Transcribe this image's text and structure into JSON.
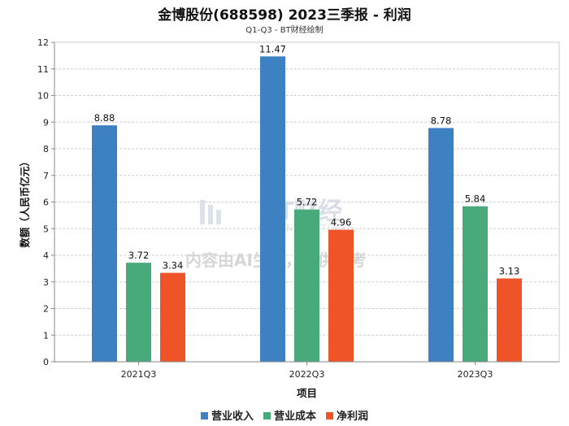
{
  "title": "金博股份(688598) 2023三季报 - 利润",
  "subtitle": "Q1-Q3 - BT财经绘制",
  "watermark": {
    "brand": "BT财经",
    "brand_en": "BUSINESS TIMES",
    "ai_notice": "内容由AI生成，仅供参考"
  },
  "chart_data": {
    "type": "bar",
    "categories": [
      "2021Q3",
      "2022Q3",
      "2023Q3"
    ],
    "series": [
      {
        "name": "营业收入",
        "color": "#3d81c3",
        "values": [
          8.88,
          11.47,
          8.78
        ]
      },
      {
        "name": "营业成本",
        "color": "#48a97b",
        "values": [
          3.72,
          5.72,
          5.84
        ]
      },
      {
        "name": "净利润",
        "color": "#ef5428",
        "values": [
          3.34,
          4.96,
          3.13
        ]
      }
    ],
    "xlabel": "项目",
    "ylabel": "数额（人民币亿元）",
    "ylim": [
      0,
      12
    ],
    "yticks": [
      0,
      1,
      2,
      3,
      4,
      5,
      6,
      7,
      8,
      9,
      10,
      11,
      12
    ],
    "grid": true,
    "legend": "bottom"
  }
}
